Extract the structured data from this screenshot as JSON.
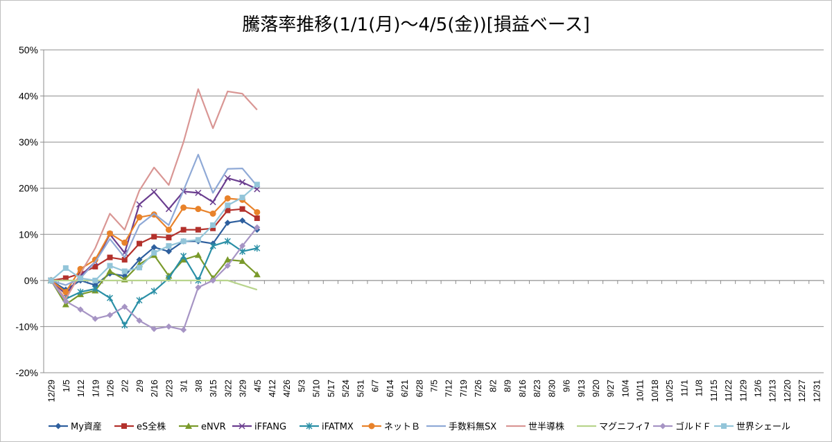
{
  "chart_data": {
    "type": "line",
    "title": "騰落率推移(1/1(月)～4/5(金))[損益ベース]",
    "xlabel": "",
    "ylabel": "",
    "ylim": [
      -0.2,
      0.5
    ],
    "yticks": [
      -0.2,
      -0.1,
      0,
      0.1,
      0.2,
      0.3,
      0.4,
      0.5
    ],
    "ytick_labels": [
      "-20%",
      "-10%",
      "0%",
      "10%",
      "20%",
      "30%",
      "40%",
      "50%"
    ],
    "grid": "horizontal",
    "legend": "bottom",
    "x_labels": [
      "12/29",
      "1/5",
      "1/12",
      "1/19",
      "1/26",
      "2/2",
      "2/9",
      "2/16",
      "2/23",
      "3/1",
      "3/8",
      "3/15",
      "3/22",
      "3/29",
      "4/5",
      "4/12",
      "4/26",
      "5/3",
      "5/10",
      "5/17",
      "5/24",
      "5/31",
      "6/7",
      "6/14",
      "6/21",
      "6/28",
      "7/5",
      "7/12",
      "7/19",
      "7/26",
      "8/2",
      "8/9",
      "8/16",
      "8/23",
      "8/30",
      "9/6",
      "9/13",
      "9/20",
      "9/27",
      "10/4",
      "10/11",
      "10/18",
      "10/25",
      "11/1",
      "11/8",
      "11/15",
      "11/22",
      "11/29",
      "12/6",
      "12/13",
      "12/20",
      "12/27",
      "12/31"
    ],
    "series": [
      {
        "name": "My資産",
        "color": "#2e5f9e",
        "marker": "diamond",
        "values": [
          0,
          -0.02,
          0,
          -0.01,
          0.015,
          0.01,
          0.045,
          0.072,
          0.063,
          0.085,
          0.085,
          0.08,
          0.125,
          0.13,
          0.11
        ]
      },
      {
        "name": "eS全株",
        "color": "#b3312c",
        "marker": "square",
        "values": [
          0,
          0.005,
          0.015,
          0.03,
          0.05,
          0.045,
          0.08,
          0.095,
          0.093,
          0.11,
          0.11,
          0.113,
          0.152,
          0.155,
          0.135
        ]
      },
      {
        "name": "eNVR",
        "color": "#7a9a2b",
        "marker": "triangle",
        "values": [
          0,
          -0.052,
          -0.03,
          -0.022,
          0.02,
          0.002,
          0.035,
          0.055,
          0.01,
          0.045,
          0.055,
          0.005,
          0.045,
          0.042,
          0.013
        ]
      },
      {
        "name": "iFFANG",
        "color": "#6a3d8f",
        "marker": "x",
        "values": [
          0,
          -0.03,
          0.01,
          0.04,
          0.1,
          0.06,
          0.165,
          0.192,
          0.155,
          0.193,
          0.19,
          0.17,
          0.222,
          0.213,
          0.198
        ]
      },
      {
        "name": "iFATMX",
        "color": "#2a8fa6",
        "marker": "star",
        "values": [
          0,
          -0.04,
          -0.025,
          -0.018,
          -0.038,
          -0.097,
          -0.043,
          -0.023,
          0.005,
          0.053,
          0.0,
          0.075,
          0.085,
          0.063,
          0.07
        ]
      },
      {
        "name": "ネットＢ",
        "color": "#e8822a",
        "marker": "circle",
        "values": [
          0,
          -0.025,
          0.025,
          0.045,
          0.102,
          0.082,
          0.137,
          0.143,
          0.11,
          0.158,
          0.155,
          0.145,
          0.178,
          0.175,
          0.148
        ]
      },
      {
        "name": "手数料無SX",
        "color": "#8fa9d6",
        "marker": "dash",
        "values": [
          0,
          -0.01,
          0.005,
          0.04,
          0.09,
          0.05,
          0.12,
          0.145,
          0.12,
          0.195,
          0.273,
          0.19,
          0.242,
          0.243,
          0.205
        ]
      },
      {
        "name": "世半導株",
        "color": "#d99694",
        "marker": "dash",
        "values": [
          0,
          -0.04,
          0.015,
          0.07,
          0.145,
          0.11,
          0.195,
          0.245,
          0.207,
          0.3,
          0.415,
          0.33,
          0.41,
          0.405,
          0.37
        ]
      },
      {
        "name": "マグニフィ7",
        "color": "#b8d48c",
        "marker": "dash",
        "values": [
          0,
          0,
          0,
          0,
          0,
          0,
          0,
          0,
          0,
          0,
          0,
          0,
          0,
          -0.01,
          -0.02
        ]
      },
      {
        "name": "ゴルドＦ",
        "color": "#a694c4",
        "marker": "diamond",
        "values": [
          0,
          -0.045,
          -0.063,
          -0.083,
          -0.075,
          -0.057,
          -0.087,
          -0.105,
          -0.1,
          -0.107,
          -0.015,
          0.0,
          0.032,
          0.075,
          0.115
        ]
      },
      {
        "name": "世界シェール",
        "color": "#93c5d9",
        "marker": "square",
        "values": [
          0,
          0.027,
          0.005,
          0.0,
          0.032,
          0.02,
          0.028,
          0.06,
          0.075,
          0.085,
          0.088,
          0.12,
          0.163,
          0.18,
          0.208
        ]
      }
    ]
  }
}
